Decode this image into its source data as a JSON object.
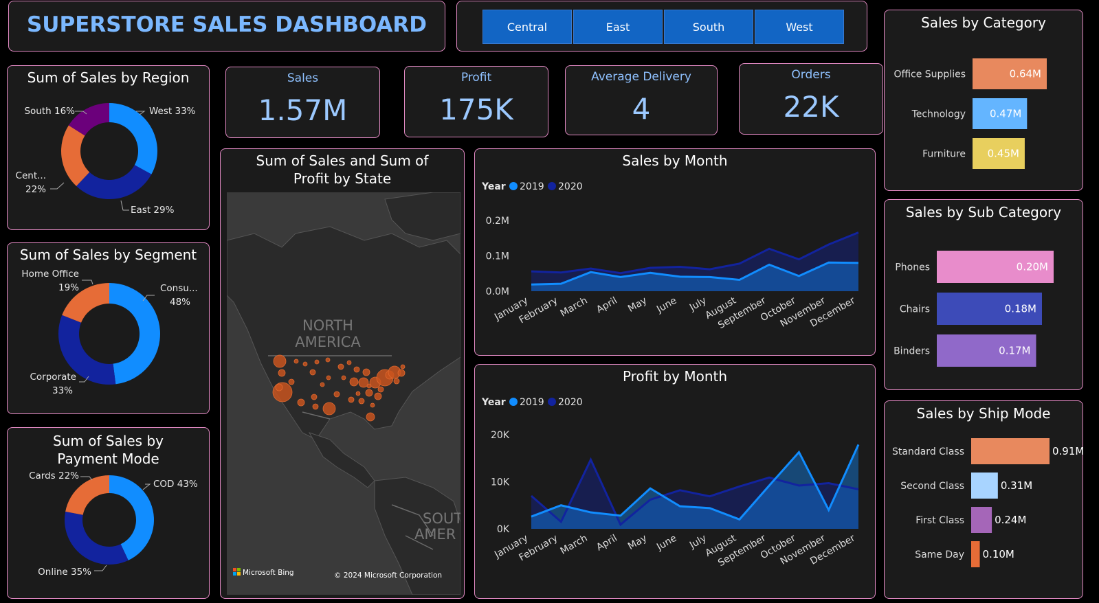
{
  "header": {
    "title": "SUPERSTORE SALES DASHBOARD"
  },
  "region_buttons": [
    {
      "label": "Central"
    },
    {
      "label": "East"
    },
    {
      "label": "South"
    },
    {
      "label": "West"
    }
  ],
  "kpis": [
    {
      "label": "Sales",
      "value": "1.57M"
    },
    {
      "label": "Profit",
      "value": "175K"
    },
    {
      "label": "Average Delivery",
      "value": "4"
    },
    {
      "label": "Orders",
      "value": "22K"
    }
  ],
  "map": {
    "title": "Sum of Sales and Sum of Profit by State",
    "label_north": "NORTH",
    "label_america": "AMERICA",
    "label_south": "SOUT",
    "label_south2": "AMER",
    "bing": "Microsoft Bing",
    "copyright": "© 2024 Microsoft Corporation"
  },
  "colors": {
    "blue": "#118dff",
    "navy": "#12239e",
    "orange": "#e66c37",
    "purple": "#6b007b"
  },
  "chart_data": [
    {
      "id": "region",
      "type": "pie",
      "title": "Sum of Sales by Region",
      "slices": [
        {
          "label": "West 33%",
          "value": 33,
          "color": "#118dff"
        },
        {
          "label": "East 29%",
          "value": 29,
          "color": "#12239e"
        },
        {
          "label": "Cent...",
          "label2": "22%",
          "value": 22,
          "color": "#e66c37"
        },
        {
          "label": "South 16%",
          "value": 16,
          "color": "#6b007b"
        }
      ]
    },
    {
      "id": "segment",
      "type": "pie",
      "title": "Sum of Sales by Segment",
      "slices": [
        {
          "label": "Consu...",
          "label2": "48%",
          "value": 48,
          "color": "#118dff"
        },
        {
          "label": "Corporate",
          "label2": "33%",
          "value": 33,
          "color": "#12239e"
        },
        {
          "label": "Home Office",
          "label2": "19%",
          "value": 19,
          "color": "#e66c37"
        }
      ]
    },
    {
      "id": "payment",
      "type": "pie",
      "title": "Sum of Sales by Payment Mode",
      "slices": [
        {
          "label": "COD 43%",
          "value": 43,
          "color": "#118dff"
        },
        {
          "label": "Online 35%",
          "value": 35,
          "color": "#12239e"
        },
        {
          "label": "Cards 22%",
          "value": 22,
          "color": "#e66c37"
        }
      ]
    },
    {
      "id": "sales_month",
      "type": "area",
      "title": "Sales by Month",
      "legend_title": "Year",
      "categories": [
        "January",
        "February",
        "March",
        "April",
        "May",
        "June",
        "July",
        "August",
        "September",
        "October",
        "November",
        "December"
      ],
      "yticks": [
        "0.0M",
        "0.1M",
        "0.2M"
      ],
      "ylim": [
        0,
        0.2
      ],
      "series": [
        {
          "name": "2019",
          "color": "#118dff",
          "values": [
            0.019,
            0.021,
            0.054,
            0.04,
            0.052,
            0.041,
            0.04,
            0.032,
            0.075,
            0.043,
            0.081,
            0.08
          ]
        },
        {
          "name": "2020",
          "color": "#12239e",
          "values": [
            0.056,
            0.053,
            0.064,
            0.051,
            0.066,
            0.069,
            0.062,
            0.078,
            0.12,
            0.09,
            0.132,
            0.166
          ]
        }
      ]
    },
    {
      "id": "profit_month",
      "type": "area",
      "title": "Profit by Month",
      "legend_title": "Year",
      "categories": [
        "January",
        "February",
        "March",
        "April",
        "May",
        "June",
        "July",
        "August",
        "September",
        "October",
        "November",
        "December"
      ],
      "yticks": [
        "0K",
        "10K",
        "20K"
      ],
      "ylim": [
        0,
        20000
      ],
      "series": [
        {
          "name": "2019",
          "color": "#118dff",
          "values": [
            2600,
            5000,
            3500,
            2800,
            8600,
            4800,
            4400,
            2000,
            9200,
            16300,
            4000,
            17900
          ]
        },
        {
          "name": "2020",
          "color": "#12239e",
          "values": [
            7000,
            1500,
            14700,
            900,
            6200,
            8200,
            6900,
            9000,
            10900,
            9200,
            9700,
            8400
          ]
        }
      ]
    },
    {
      "id": "category",
      "type": "bar",
      "title": "Sales by Category",
      "categories": [
        "Office Supplies",
        "Technology",
        "Furniture"
      ],
      "values": [
        0.64,
        0.47,
        0.45
      ],
      "labels": [
        "0.64M",
        "0.47M",
        "0.45M"
      ],
      "colors": [
        "#e8895e",
        "#64b5ff",
        "#e8cf5e"
      ],
      "label_inside": true
    },
    {
      "id": "subcategory",
      "type": "bar",
      "title": "Sales by Sub Category",
      "categories": [
        "Phones",
        "Chairs",
        "Binders"
      ],
      "values": [
        0.2,
        0.18,
        0.17
      ],
      "labels": [
        "0.20M",
        "0.18M",
        "0.17M"
      ],
      "colors": [
        "#e88ccb",
        "#3d4bb8",
        "#9069c9"
      ],
      "label_inside": true
    },
    {
      "id": "shipmode",
      "type": "bar",
      "title": "Sales by Ship Mode",
      "categories": [
        "Standard Class",
        "Second Class",
        "First Class",
        "Same Day"
      ],
      "values": [
        0.91,
        0.31,
        0.24,
        0.1
      ],
      "labels": [
        "0.91M",
        "0.31M",
        "0.24M",
        "0.10M"
      ],
      "colors": [
        "#e8895e",
        "#a8d4ff",
        "#a566b8",
        "#e66c37"
      ],
      "label_inside": false
    }
  ]
}
